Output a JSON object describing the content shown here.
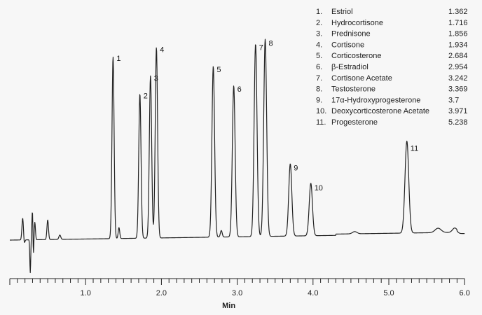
{
  "chart_data": {
    "type": "line",
    "title": "",
    "xlabel": "Min",
    "ylabel": "",
    "xlim": [
      0,
      6.0
    ],
    "x_ticks": [
      "1.0",
      "2.0",
      "3.0",
      "4.0",
      "5.0",
      "6.0"
    ],
    "grid": false,
    "legend_placement": "top-right",
    "line_color": "#222222",
    "peaks": [
      {
        "label": "1",
        "name": "Estriol",
        "time": "1.362",
        "height": 0.83
      },
      {
        "label": "2",
        "name": "Hydrocortisone",
        "time": "1.716",
        "height": 0.66
      },
      {
        "label": "3",
        "name": "Prednisone",
        "time": "1.856",
        "height": 0.74
      },
      {
        "label": "4",
        "name": "Cortisone",
        "time": "1.934",
        "height": 0.87
      },
      {
        "label": "5",
        "name": "Corticosterone",
        "time": "2.684",
        "height": 0.78
      },
      {
        "label": "6",
        "name": "β-Estradiol",
        "time": "2.954",
        "height": 0.69
      },
      {
        "label": "7",
        "name": "Cortisone Acetate",
        "time": "3.242",
        "height": 0.88
      },
      {
        "label": "8",
        "name": "Testosterone",
        "time": "3.369",
        "height": 0.9
      },
      {
        "label": "9",
        "name": "17α-Hydroxyprogesterone",
        "time": "3.7",
        "height": 0.33
      },
      {
        "label": "10",
        "name": "Deoxycorticosterone Acetate",
        "time": "3.971",
        "height": 0.24
      },
      {
        "label": "11",
        "name": "Progesterone",
        "time": "5.238",
        "height": 0.42
      }
    ]
  }
}
